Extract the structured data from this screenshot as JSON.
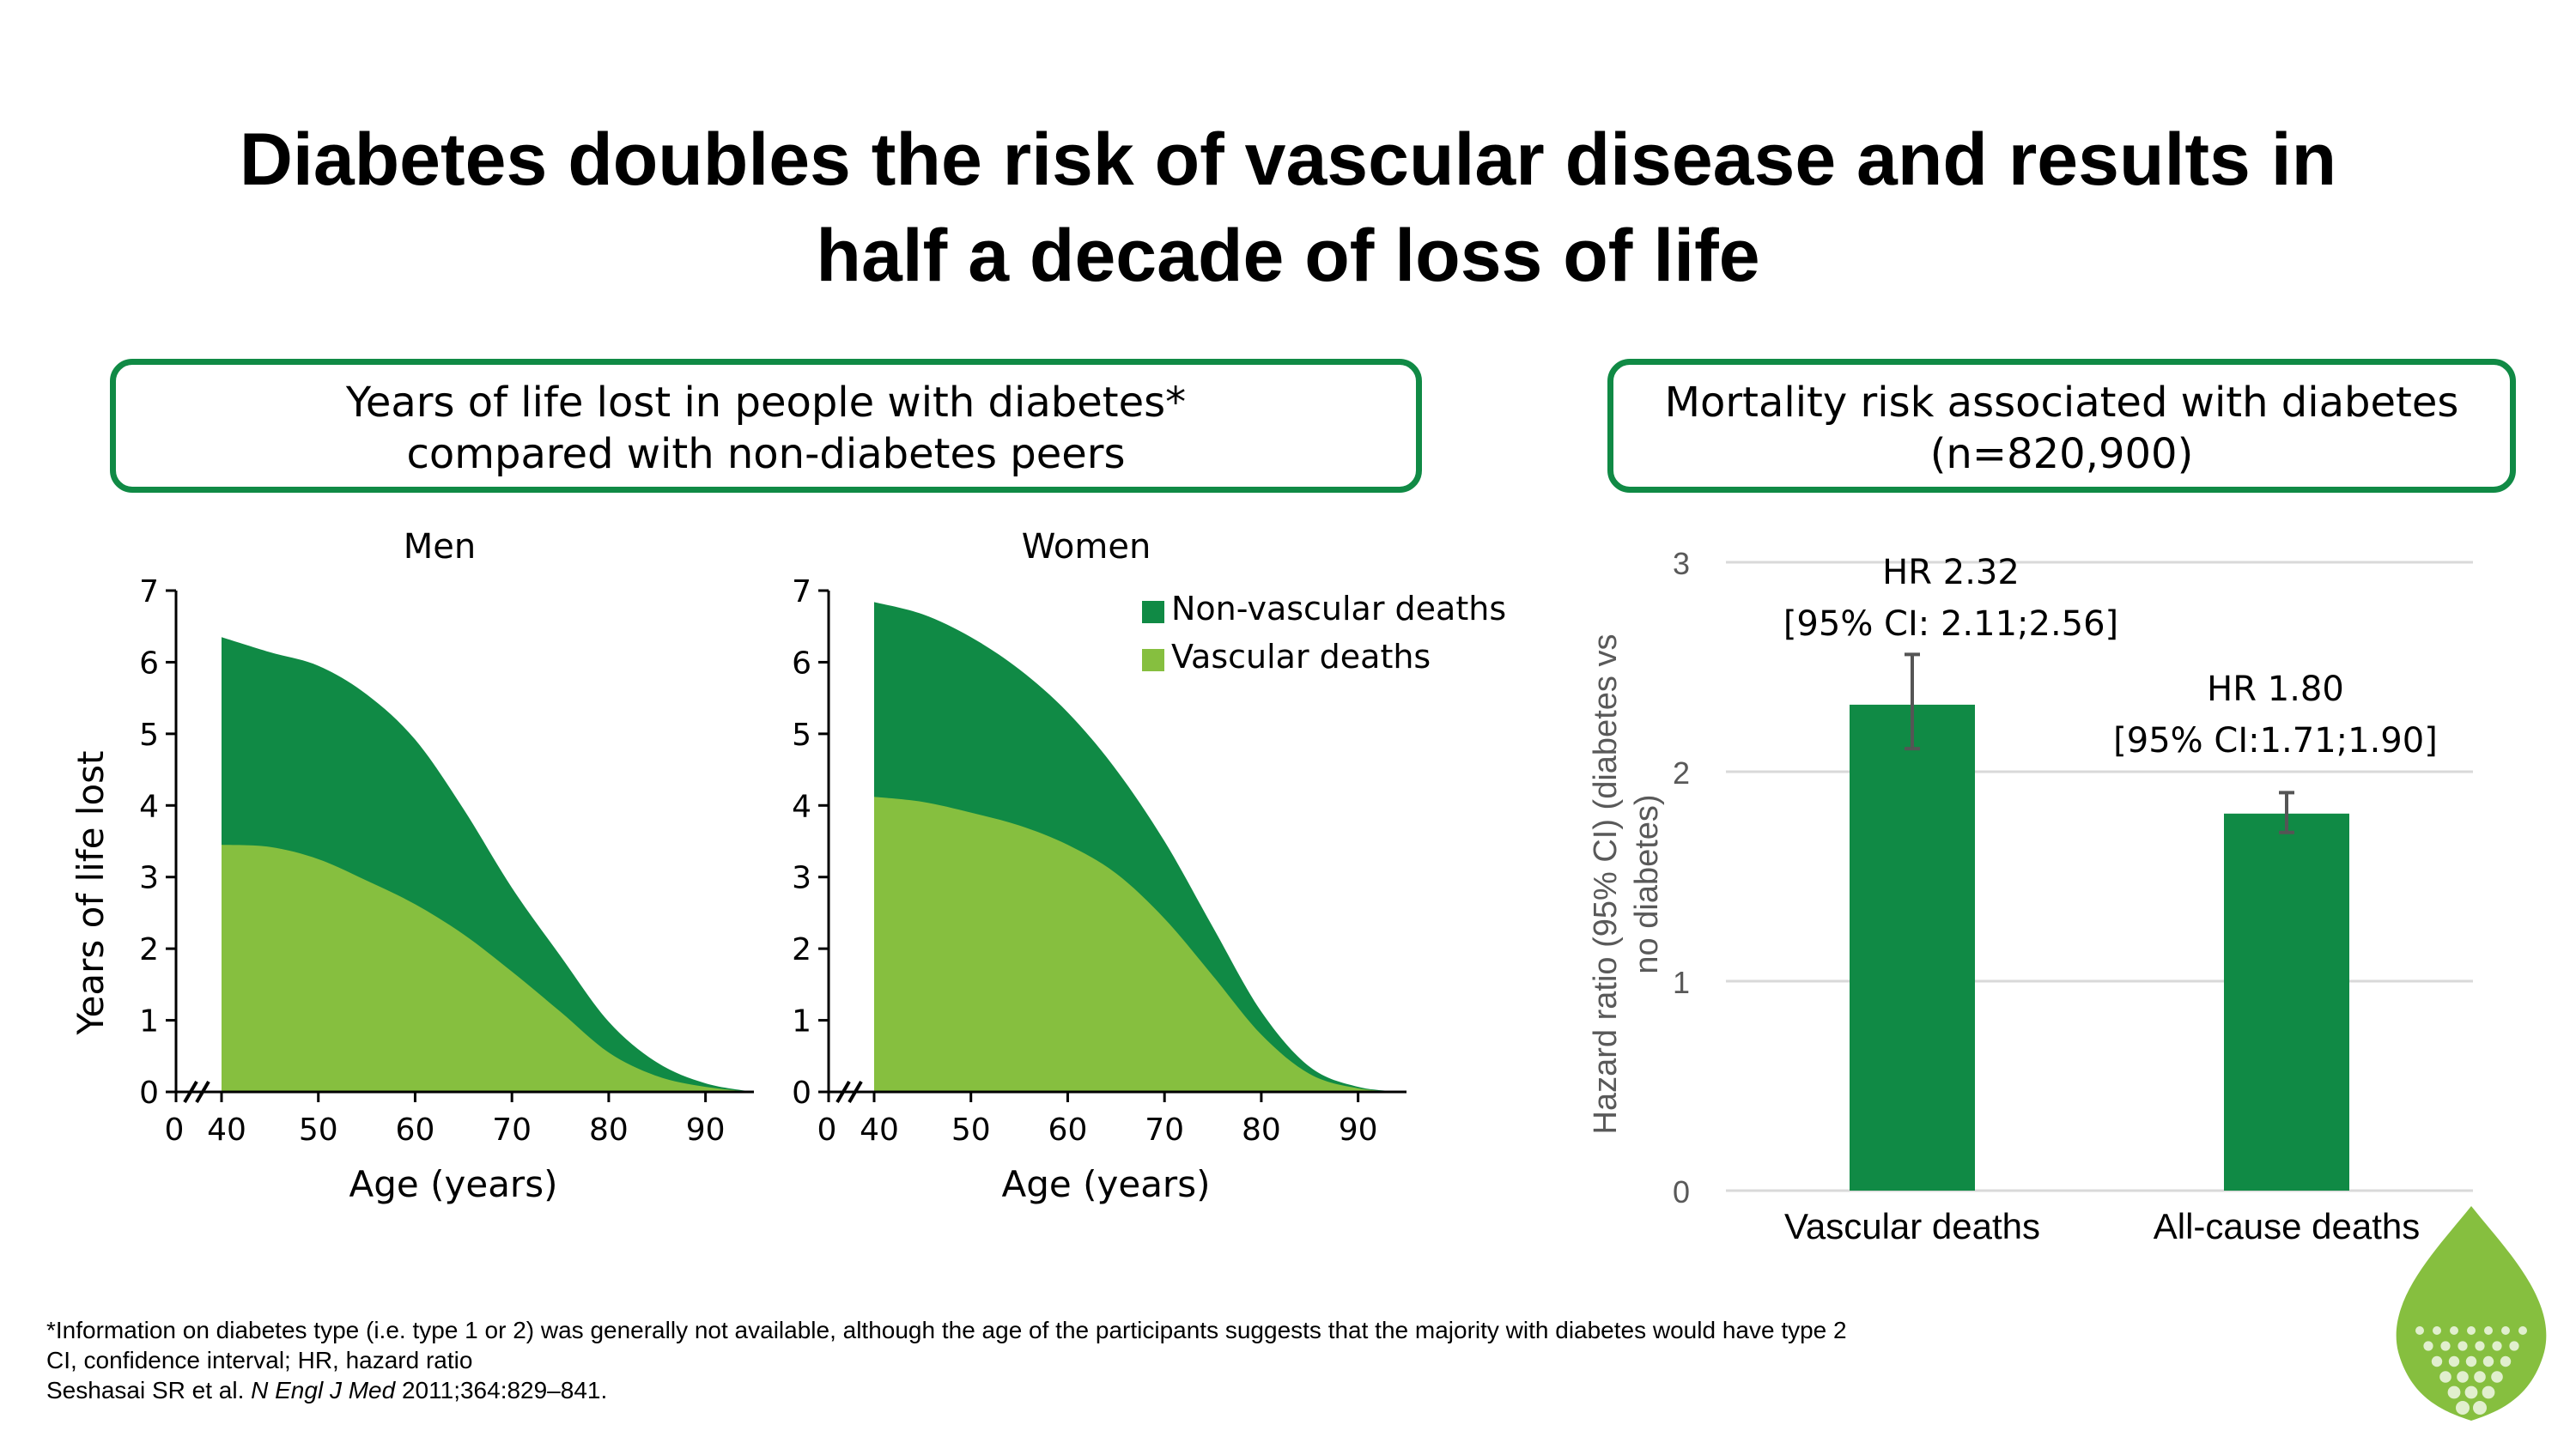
{
  "title": {
    "line1": "Diabetes doubles the risk of vascular disease and results in",
    "line2": "half a decade of loss of life"
  },
  "left_panel": {
    "line1": "Years of life lost in people with diabetes*",
    "line2": "compared with non-diabetes peers"
  },
  "right_panel": {
    "line1": "Mortality risk associated with diabetes",
    "line2": "(n=820,900)"
  },
  "colors": {
    "dark_green": "#108a45",
    "light_green": "#86bf3f",
    "gridline": "#d9d9d9",
    "axis_text_gray": "#595959"
  },
  "chart_data": [
    {
      "type": "area",
      "title": "Men",
      "xlabel": "Age (years)",
      "ylabel": "Years of life lost",
      "xlim": [
        40,
        95
      ],
      "ylim": [
        0,
        7
      ],
      "xticks": [
        0,
        40,
        50,
        60,
        70,
        80,
        90
      ],
      "yticks": [
        0,
        1,
        2,
        3,
        4,
        5,
        6,
        7
      ],
      "axis_break": true,
      "x": [
        40,
        45,
        50,
        55,
        60,
        65,
        70,
        75,
        80,
        85,
        90,
        95
      ],
      "series": [
        {
          "name": "Vascular deaths",
          "values": [
            3.45,
            3.42,
            3.25,
            2.95,
            2.62,
            2.2,
            1.68,
            1.12,
            0.55,
            0.22,
            0.07,
            0.0
          ]
        },
        {
          "name": "Non-vascular deaths",
          "values": [
            2.9,
            2.72,
            2.7,
            2.6,
            2.3,
            1.75,
            1.17,
            0.78,
            0.43,
            0.19,
            0.05,
            0.0
          ]
        }
      ]
    },
    {
      "type": "area",
      "title": "Women",
      "xlabel": "Age (years)",
      "ylabel": "",
      "xlim": [
        40,
        95
      ],
      "ylim": [
        0,
        7
      ],
      "xticks": [
        0,
        40,
        50,
        60,
        70,
        80,
        90
      ],
      "yticks": [
        0,
        1,
        2,
        3,
        4,
        5,
        6,
        7
      ],
      "axis_break": true,
      "legend": "top-right",
      "x": [
        40,
        45,
        50,
        55,
        60,
        65,
        70,
        75,
        80,
        85,
        90,
        95
      ],
      "series": [
        {
          "name": "Vascular deaths",
          "values": [
            4.12,
            4.05,
            3.9,
            3.72,
            3.45,
            3.05,
            2.42,
            1.62,
            0.8,
            0.25,
            0.05,
            0.0
          ]
        },
        {
          "name": "Non-vascular deaths",
          "values": [
            2.72,
            2.62,
            2.45,
            2.18,
            1.85,
            1.45,
            1.08,
            0.68,
            0.32,
            0.1,
            0.02,
            0.0
          ]
        }
      ]
    },
    {
      "type": "bar",
      "title": "",
      "categories": [
        "Vascular deaths",
        "All-cause deaths"
      ],
      "values": [
        2.32,
        1.8
      ],
      "ci": [
        [
          2.11,
          2.56
        ],
        [
          1.71,
          1.9
        ]
      ],
      "labels": [
        {
          "line1": "HR 2.32",
          "line2": "[95% CI: 2.11;2.56]"
        },
        {
          "line1": "HR 1.80",
          "line2": "[95% CI:1.71;1.90]"
        }
      ],
      "ylabel_line1": "Hazard ratio (95% CI) (diabetes vs",
      "ylabel_line2": "no diabetes)",
      "ylim": [
        0,
        3
      ],
      "yticks": [
        0,
        1,
        2,
        3
      ],
      "grid": true
    }
  ],
  "footer": {
    "line1": "*Information on diabetes type (i.e. type 1 or 2) was generally not available, although the age of the participants suggests that the majority with diabetes would have type 2",
    "line2": "CI, confidence interval; HR, hazard ratio",
    "ref_authors": "Seshasai SR et al. ",
    "ref_journal": "N Engl J Med",
    "ref_rest": " 2011;364:829–841."
  }
}
